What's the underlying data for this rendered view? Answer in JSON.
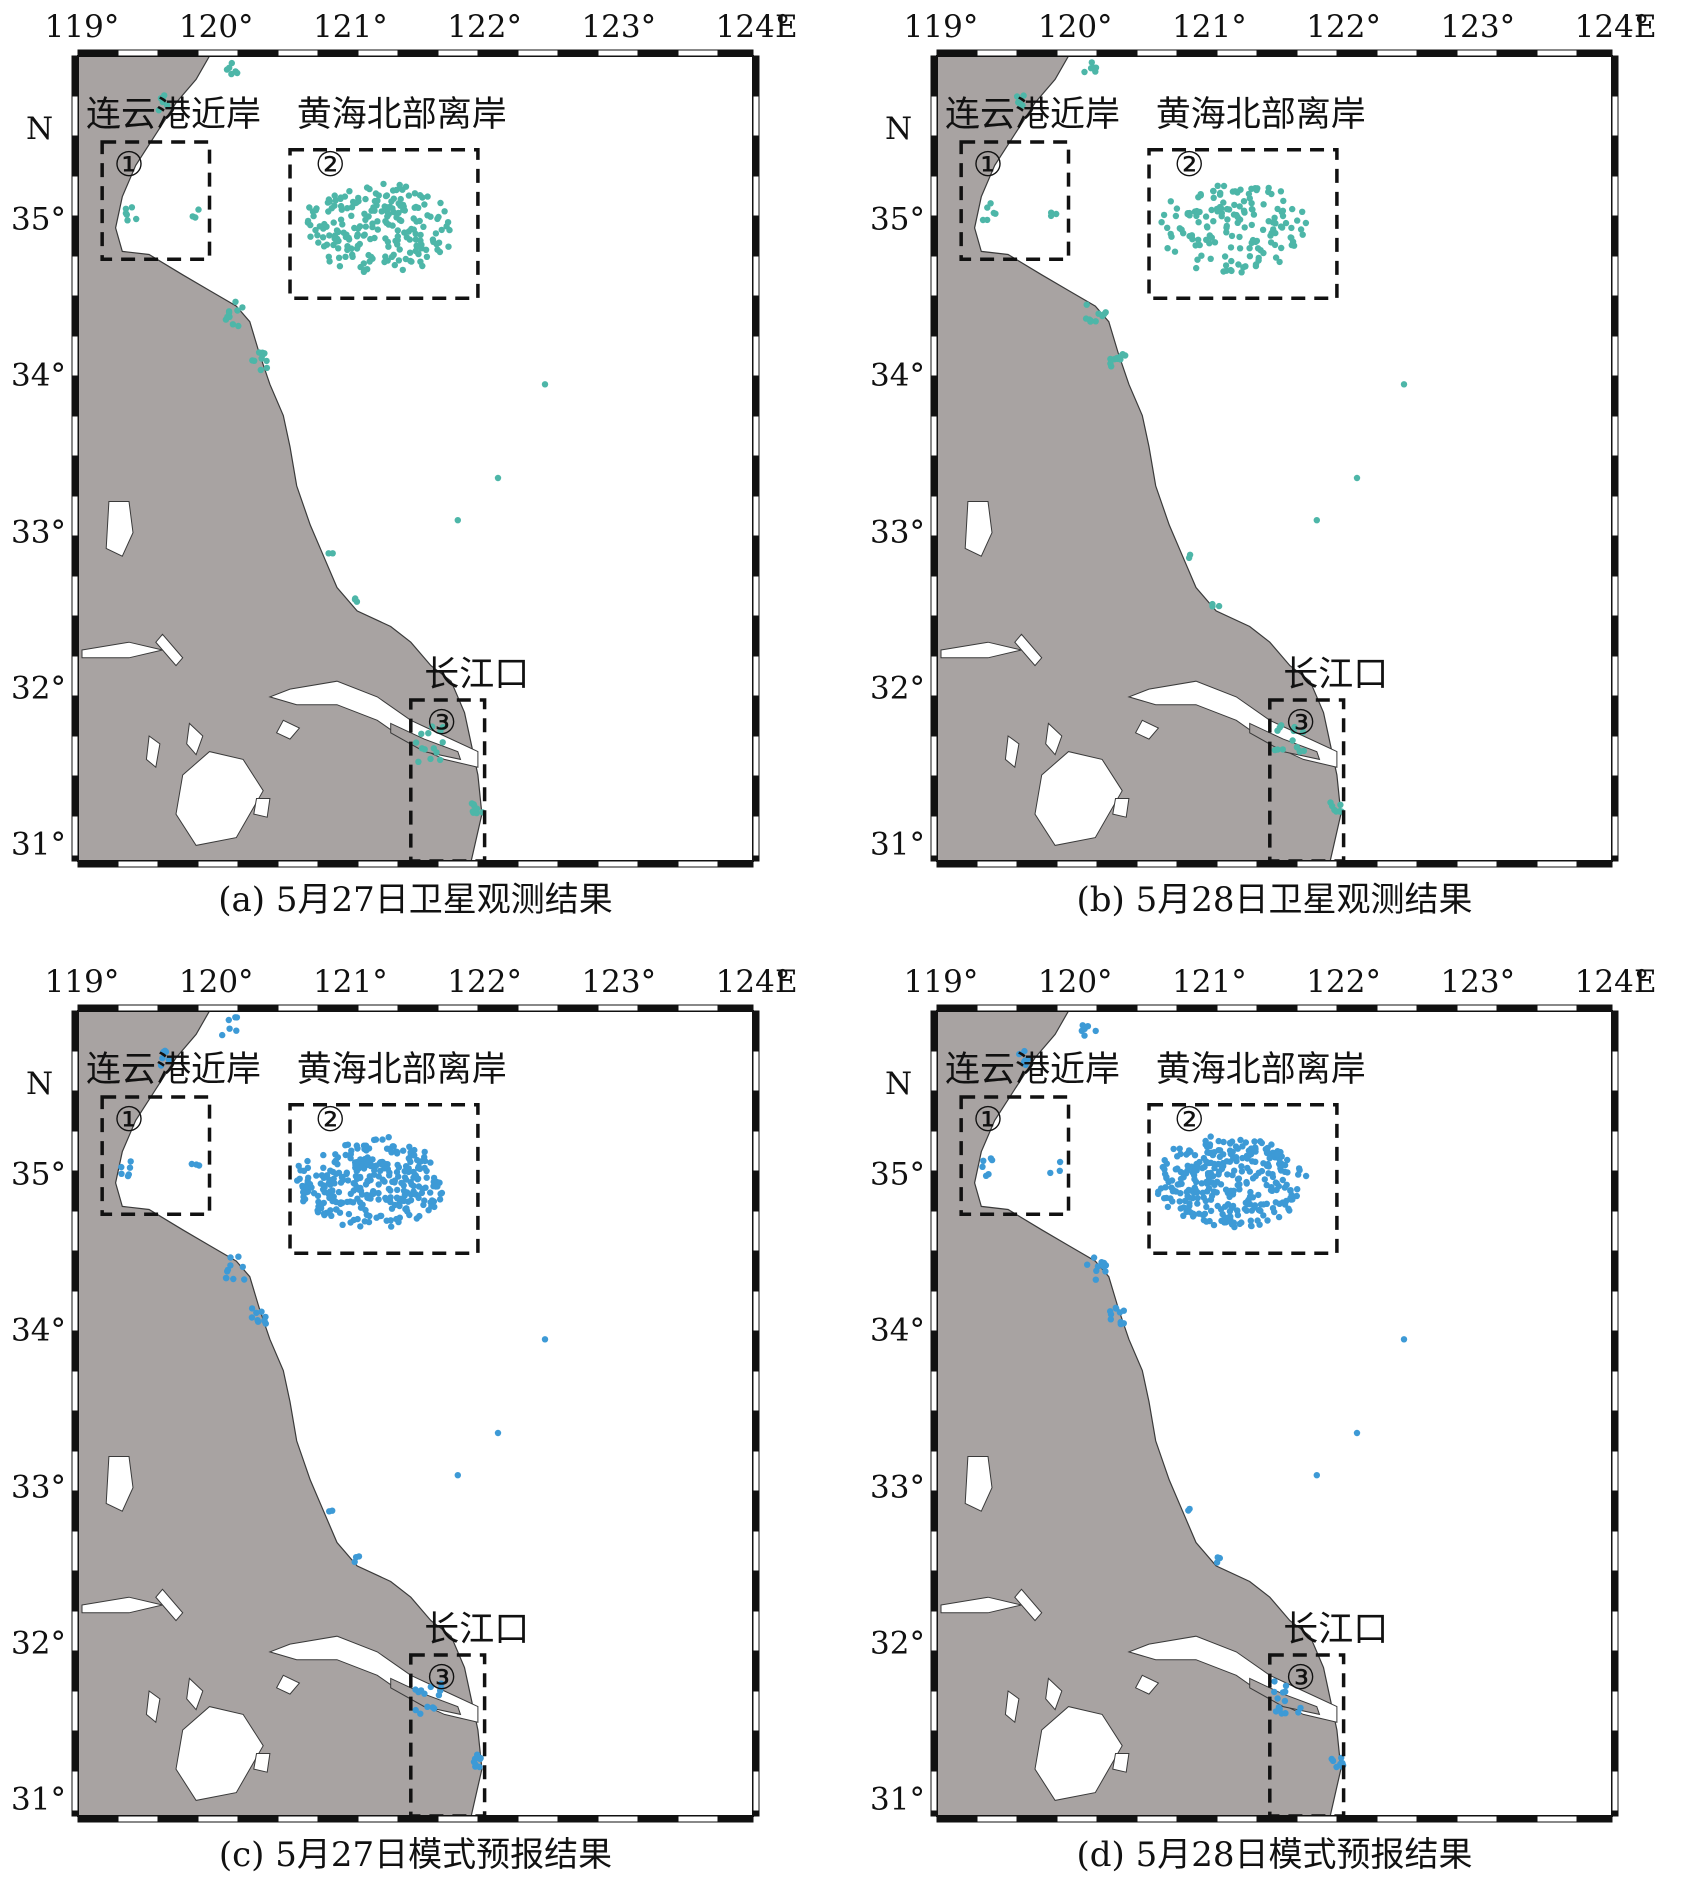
{
  "panels": [
    {
      "id": "a",
      "caption": "(a) 5月27日卫星观测结果",
      "dot_color": "#4db6a8",
      "kind": "satellite",
      "day": 27,
      "x_ticks": [
        "119°",
        "120°",
        "121°",
        "122°",
        "123°",
        "124°"
      ],
      "x_unit": "E",
      "y_ticks": [
        "35°",
        "34°",
        "33°",
        "32°",
        "31°"
      ],
      "y_unit": "N",
      "regions": {
        "r1": {
          "label": "连云港近岸",
          "marker": "①"
        },
        "r2": {
          "label": "黄海北部离岸",
          "marker": "②"
        },
        "r3": {
          "label": "长江口",
          "marker": "③"
        }
      }
    },
    {
      "id": "b",
      "caption": "(b) 5月28日卫星观测结果",
      "dot_color": "#4db6a8",
      "kind": "satellite",
      "day": 28,
      "x_ticks": [
        "119°",
        "120°",
        "121°",
        "122°",
        "123°",
        "124°"
      ],
      "x_unit": "E",
      "y_ticks": [
        "35°",
        "34°",
        "33°",
        "32°",
        "31°"
      ],
      "y_unit": "N",
      "regions": {
        "r1": {
          "label": "连云港近岸",
          "marker": "①"
        },
        "r2": {
          "label": "黄海北部离岸",
          "marker": "②"
        },
        "r3": {
          "label": "长江口",
          "marker": "③"
        }
      }
    },
    {
      "id": "c",
      "caption": "(c) 5月27日模式预报结果",
      "dot_color": "#3d9ad6",
      "kind": "model",
      "day": 27,
      "x_ticks": [
        "119°",
        "120°",
        "121°",
        "122°",
        "123°",
        "124°"
      ],
      "x_unit": "E",
      "y_ticks": [
        "35°",
        "34°",
        "33°",
        "32°",
        "31°"
      ],
      "y_unit": "N",
      "regions": {
        "r1": {
          "label": "连云港近岸",
          "marker": "①"
        },
        "r2": {
          "label": "黄海北部离岸",
          "marker": "②"
        },
        "r3": {
          "label": "长江口",
          "marker": "③"
        }
      }
    },
    {
      "id": "d",
      "caption": "(d) 5月28日模式预报结果",
      "dot_color": "#3d9ad6",
      "kind": "model",
      "day": 28,
      "x_ticks": [
        "119°",
        "120°",
        "121°",
        "122°",
        "123°",
        "124°"
      ],
      "x_unit": "E",
      "y_ticks": [
        "35°",
        "34°",
        "33°",
        "32°",
        "31°"
      ],
      "y_unit": "N",
      "regions": {
        "r1": {
          "label": "连云港近岸",
          "marker": "①"
        },
        "r2": {
          "label": "黄海北部离岸",
          "marker": "②"
        },
        "r3": {
          "label": "长江口",
          "marker": "③"
        }
      }
    }
  ],
  "colors": {
    "land": "#a8a3a2",
    "land_edge": "#3a3a3a",
    "water": "#ffffff",
    "frame": "#111111"
  }
}
